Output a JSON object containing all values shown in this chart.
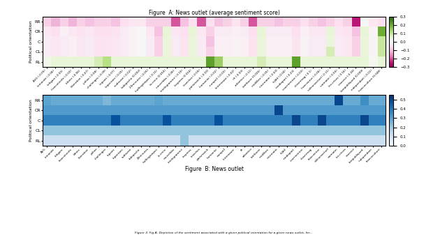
{
  "outlets_a": [
    "AVG (-0.05)",
    "lemonde (-0.06)",
    "lefigaro (-0.05)",
    "francetvinfo (-0.03)",
    "bfmtv (-0.06)",
    "liberation (-0.07)",
    "yahoo (-0.08)",
    "challenges (-0.09)",
    "lepoint (-0.07)",
    "leparisien (-0.05)",
    "sudouest (-0.02)",
    "ladepeche (0.002)",
    "20minutes (-0.05)",
    "huffingtonpos (-0.11)",
    "la-croix (0.014)",
    "nouvelobs (-0.06)",
    "letelegramme (-0.10)",
    "lexpress (0.014)",
    "lesechos (-0.05)",
    "parismatch (-0.03)",
    "humanite (-0.02)",
    "europe1 (-0.03)",
    "linternaute (-0.02)",
    "rfi (-0.03)",
    "atlantico (-0.11)",
    "latribune (0.026)",
    "midilibre (-0.05)",
    "nicematin (-0.03)",
    "leJdd (-0.04)",
    "mediapart (-0.23)",
    "courrierinter (-0.03)",
    "closermag (-0.1)",
    "franceinter (-0.06)",
    "valeursactuel (-0.11)",
    "varmatin (-0.06)",
    "les-crises (-0.16)",
    "causeur (-0.24)",
    "larepubliqued (0.009)",
    "independant (-0.01)",
    "franceculture (0.048)"
  ],
  "outlets_b": [
    "AVG",
    "lemonde",
    "lefigaro",
    "francetvinfo",
    "bfmtv",
    "liberation",
    "yahoo",
    "challenges",
    "lepoint",
    "leparisien",
    "sudouest",
    "ladepeche",
    "20minutes",
    "huffingtonpos",
    "la-croix",
    "nouvelobs",
    "letelegramme",
    "lexpress",
    "lesechos",
    "parismatch",
    "humanite",
    "europe1",
    "linternaute",
    "rfi",
    "atlantico",
    "latribune",
    "midilibre",
    "nicematin",
    "leJdd",
    "mediapart",
    "courrierinter",
    "closermag",
    "franceinter",
    "valeursactuel",
    "varmatin",
    "les-crises",
    "causeur",
    "larepubliqued",
    "independant",
    "franceculture"
  ],
  "rows": [
    "RR",
    "CR",
    "C",
    "CL",
    "RL"
  ],
  "heatmap_a": [
    [
      -0.08,
      -0.12,
      -0.08,
      -0.12,
      -0.08,
      -0.1,
      -0.08,
      -0.08,
      -0.1,
      -0.06,
      -0.04,
      -0.04,
      -0.08,
      -0.08,
      -0.08,
      -0.2,
      -0.1,
      -0.06,
      -0.2,
      -0.06,
      -0.1,
      -0.08,
      -0.05,
      -0.08,
      -0.2,
      -0.08,
      -0.08,
      -0.1,
      -0.08,
      -0.08,
      -0.06,
      -0.08,
      -0.1,
      -0.08,
      -0.06,
      -0.08,
      -0.25,
      0.0,
      -0.04,
      -0.06
    ],
    [
      -0.04,
      -0.06,
      -0.02,
      -0.04,
      -0.05,
      -0.04,
      -0.06,
      -0.06,
      -0.05,
      -0.03,
      -0.01,
      0.0,
      -0.04,
      -0.1,
      0.05,
      -0.04,
      -0.06,
      0.05,
      -0.04,
      -0.08,
      -0.03,
      -0.03,
      -0.02,
      -0.03,
      -0.06,
      0.05,
      -0.03,
      -0.03,
      -0.03,
      -0.06,
      -0.02,
      -0.04,
      -0.04,
      0.05,
      -0.04,
      -0.05,
      -0.1,
      0.05,
      -0.01,
      0.2
    ],
    [
      -0.03,
      -0.04,
      -0.03,
      -0.02,
      -0.04,
      -0.03,
      -0.05,
      -0.05,
      -0.04,
      -0.03,
      -0.01,
      0.0,
      -0.03,
      -0.08,
      0.04,
      -0.03,
      -0.05,
      0.04,
      -0.03,
      -0.1,
      -0.02,
      -0.02,
      -0.01,
      -0.02,
      -0.05,
      0.04,
      -0.02,
      -0.02,
      -0.02,
      -0.05,
      -0.01,
      -0.03,
      -0.03,
      0.04,
      -0.03,
      -0.04,
      -0.08,
      0.04,
      -0.01,
      0.1
    ],
    [
      -0.03,
      -0.04,
      -0.03,
      -0.02,
      -0.04,
      -0.03,
      -0.05,
      -0.05,
      -0.04,
      -0.03,
      -0.01,
      0.0,
      -0.03,
      -0.08,
      0.04,
      -0.03,
      -0.05,
      0.04,
      -0.03,
      -0.08,
      -0.02,
      -0.02,
      -0.01,
      -0.02,
      -0.05,
      0.04,
      -0.02,
      -0.02,
      -0.02,
      -0.05,
      -0.01,
      -0.03,
      -0.03,
      0.08,
      -0.03,
      -0.04,
      -0.08,
      0.04,
      -0.01,
      0.1
    ],
    [
      0.02,
      0.05,
      0.05,
      0.05,
      0.05,
      0.05,
      0.08,
      0.12,
      0.05,
      0.05,
      0.05,
      0.05,
      0.05,
      0.05,
      0.05,
      0.05,
      0.05,
      0.05,
      0.05,
      0.22,
      0.15,
      0.05,
      0.05,
      0.05,
      0.05,
      0.08,
      0.05,
      0.05,
      0.05,
      0.22,
      0.05,
      0.05,
      0.05,
      0.05,
      0.05,
      0.05,
      0.05,
      0.05,
      0.01,
      0.05
    ]
  ],
  "heatmap_b": [
    [
      0.3,
      0.28,
      0.28,
      0.28,
      0.28,
      0.28,
      0.28,
      0.25,
      0.28,
      0.28,
      0.28,
      0.28,
      0.28,
      0.3,
      0.28,
      0.28,
      0.28,
      0.28,
      0.28,
      0.28,
      0.28,
      0.28,
      0.28,
      0.28,
      0.28,
      0.28,
      0.28,
      0.28,
      0.28,
      0.28,
      0.28,
      0.28,
      0.28,
      0.28,
      0.5,
      0.28,
      0.28,
      0.35,
      0.28,
      0.28
    ],
    [
      0.32,
      0.32,
      0.32,
      0.32,
      0.32,
      0.32,
      0.32,
      0.32,
      0.32,
      0.32,
      0.32,
      0.32,
      0.32,
      0.32,
      0.32,
      0.32,
      0.32,
      0.32,
      0.32,
      0.32,
      0.32,
      0.32,
      0.32,
      0.32,
      0.32,
      0.32,
      0.32,
      0.5,
      0.32,
      0.32,
      0.32,
      0.32,
      0.32,
      0.32,
      0.32,
      0.32,
      0.32,
      0.32,
      0.32,
      0.32
    ],
    [
      0.38,
      0.38,
      0.38,
      0.38,
      0.38,
      0.38,
      0.38,
      0.38,
      0.48,
      0.38,
      0.38,
      0.38,
      0.38,
      0.38,
      0.48,
      0.38,
      0.38,
      0.38,
      0.38,
      0.38,
      0.48,
      0.38,
      0.38,
      0.38,
      0.38,
      0.38,
      0.38,
      0.38,
      0.38,
      0.5,
      0.38,
      0.38,
      0.5,
      0.38,
      0.38,
      0.38,
      0.38,
      0.5,
      0.38,
      0.38
    ],
    [
      0.22,
      0.22,
      0.22,
      0.22,
      0.22,
      0.22,
      0.22,
      0.22,
      0.22,
      0.22,
      0.22,
      0.22,
      0.22,
      0.22,
      0.22,
      0.22,
      0.22,
      0.22,
      0.22,
      0.22,
      0.22,
      0.22,
      0.22,
      0.22,
      0.22,
      0.22,
      0.22,
      0.22,
      0.22,
      0.22,
      0.22,
      0.22,
      0.22,
      0.22,
      0.22,
      0.22,
      0.22,
      0.22,
      0.22,
      0.22
    ],
    [
      0.12,
      0.12,
      0.12,
      0.12,
      0.12,
      0.12,
      0.12,
      0.12,
      0.12,
      0.12,
      0.12,
      0.12,
      0.12,
      0.12,
      0.12,
      0.12,
      0.22,
      0.12,
      0.12,
      0.12,
      0.12,
      0.12,
      0.12,
      0.12,
      0.12,
      0.12,
      0.12,
      0.12,
      0.12,
      0.12,
      0.12,
      0.12,
      0.12,
      0.12,
      0.12,
      0.12,
      0.12,
      0.12,
      0.12,
      0.12
    ]
  ],
  "cmap_a": "PiYG",
  "cmap_b": "Blues",
  "vmin_a": -0.3,
  "vmax_a": 0.3,
  "vmin_b": 0.0,
  "vmax_b": 0.55,
  "title_a": "Figure  A: News outlet (average sentiment score)",
  "title_b": "Figure  B: News outlet",
  "ylabel": "Political orientation",
  "caption": "Figure 3: Fig A: Depiction of the sentiment associated with a given political orientation for a given news outlet, for..."
}
